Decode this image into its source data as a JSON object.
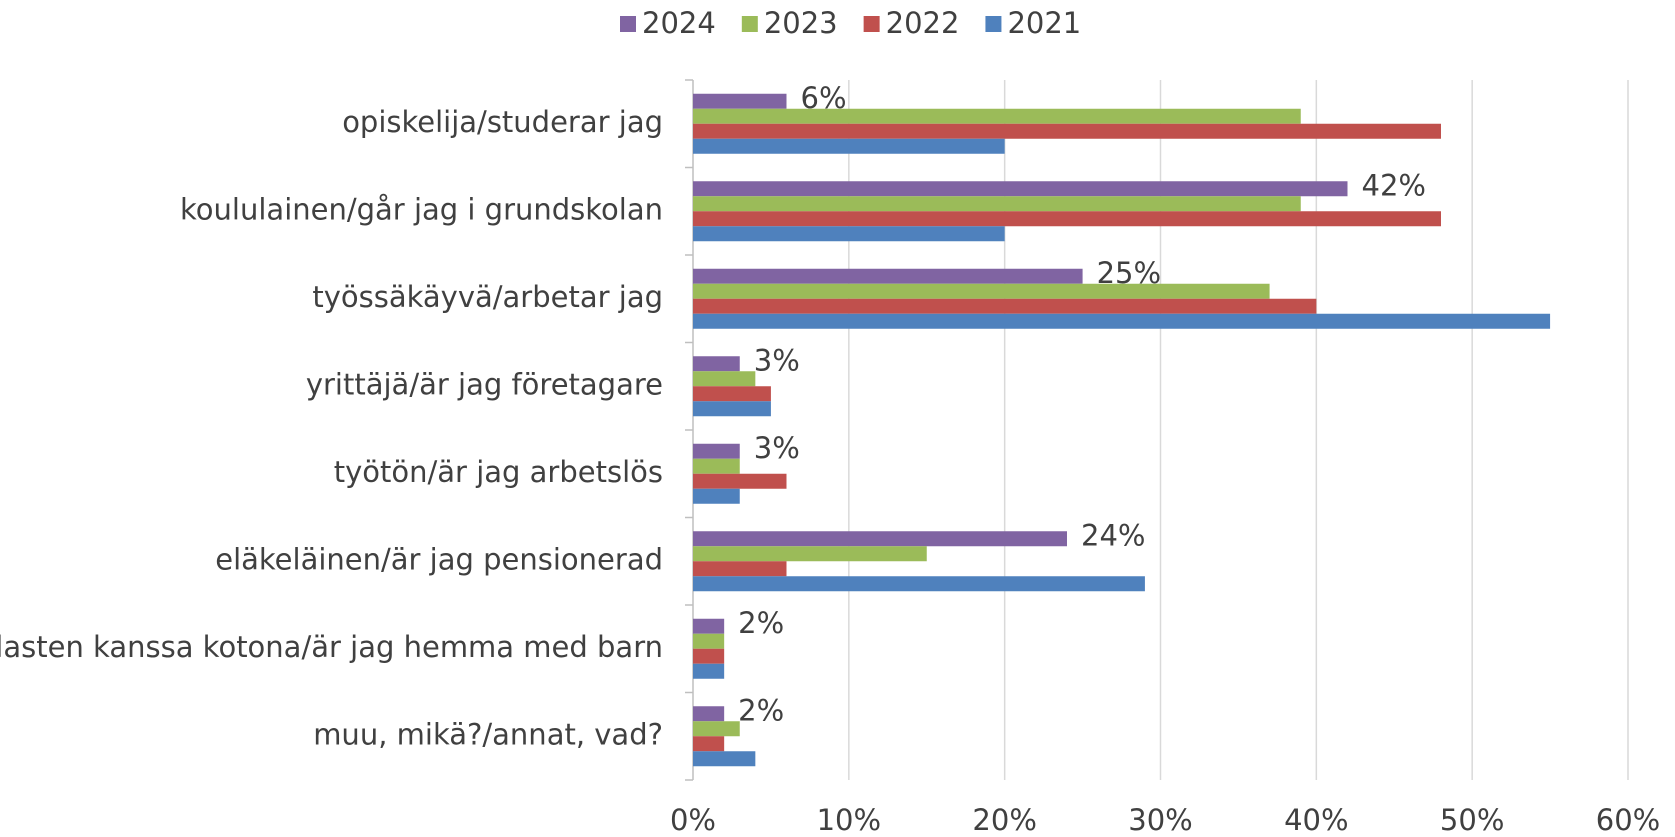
{
  "chart_data": {
    "type": "bar",
    "orientation": "horizontal",
    "categories": [
      "opiskelija/studerar jag",
      "koululainen/går jag i grundskolan",
      "työssäkäyvä/arbetar jag",
      "yrittäjä/är jag företagare",
      "työtön/är jag arbetslös",
      "eläkeläinen/är jag pensionerad",
      "lasten kanssa kotona/är jag hemma med barn",
      "muu, mikä?/annat, vad?"
    ],
    "series": [
      {
        "name": "2024",
        "color": "#8064a2",
        "values": [
          6,
          42,
          25,
          3,
          3,
          24,
          2,
          2
        ],
        "value_labels": [
          "6%",
          "42%",
          "25%",
          "3%",
          "3%",
          "24%",
          "2%",
          "2%"
        ]
      },
      {
        "name": "2023",
        "color": "#9bbb59",
        "values": [
          39,
          39,
          37,
          4,
          3,
          15,
          2,
          3
        ]
      },
      {
        "name": "2022",
        "color": "#c0504d",
        "values": [
          48,
          48,
          40,
          5,
          6,
          6,
          2,
          2
        ]
      },
      {
        "name": "2021",
        "color": "#4f81bd",
        "values": [
          20,
          20,
          55,
          5,
          3,
          29,
          2,
          4
        ]
      }
    ],
    "xlim": [
      0,
      60
    ],
    "xticks": [
      {
        "value": 0,
        "label": "0%"
      },
      {
        "value": 10,
        "label": "10%"
      },
      {
        "value": 20,
        "label": "20%"
      },
      {
        "value": 30,
        "label": "30%"
      },
      {
        "value": 40,
        "label": "40%"
      },
      {
        "value": 50,
        "label": "50%"
      },
      {
        "value": 60,
        "label": "60%"
      }
    ],
    "grid": true,
    "legend": "top"
  }
}
